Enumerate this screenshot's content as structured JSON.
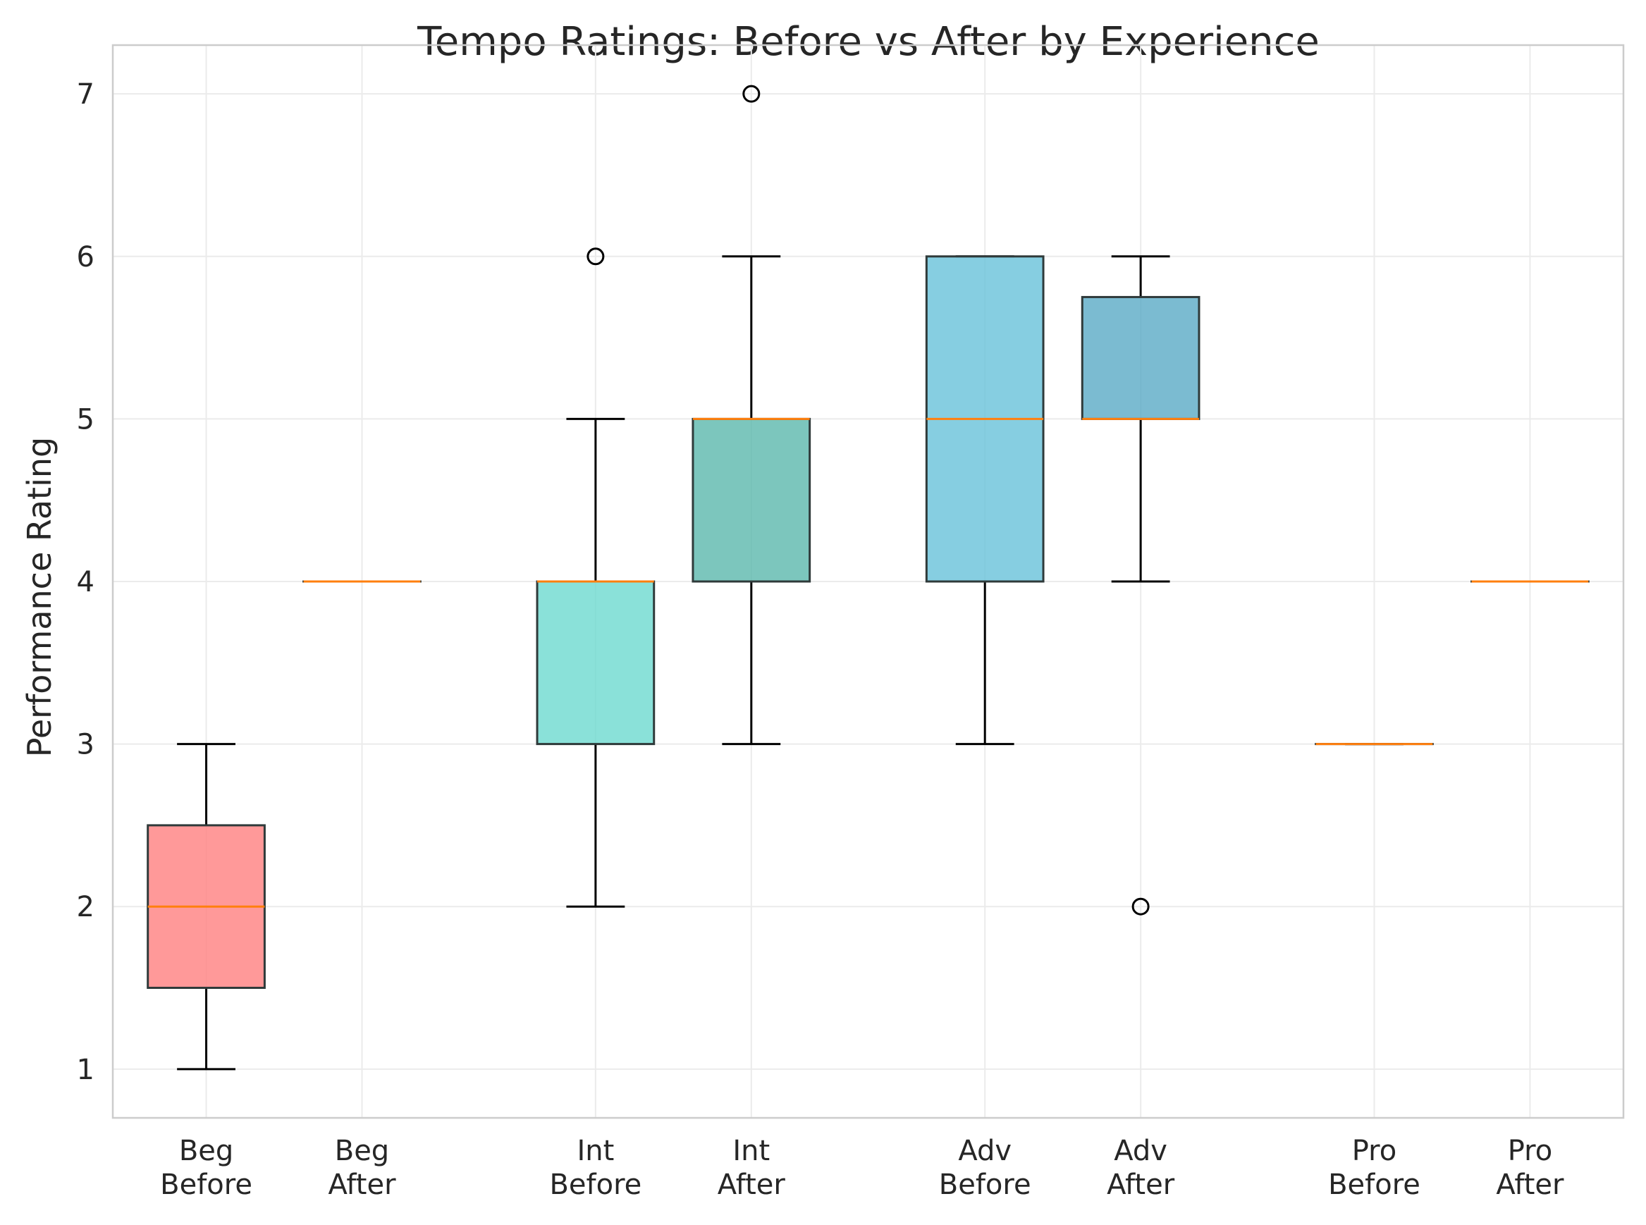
{
  "chart_data": {
    "type": "boxplot",
    "title": "Tempo Ratings: Before vs After by Experience",
    "xlabel": "",
    "ylabel": "Performance Rating",
    "ylim": [
      0.7,
      7.3
    ],
    "yticks": [
      1,
      2,
      3,
      4,
      5,
      6,
      7
    ],
    "grid": true,
    "legend": "none",
    "median_color": "#ff7f0e",
    "boxes": [
      {
        "label": [
          "Beg",
          "Before"
        ],
        "group": 0,
        "whislo": 1,
        "q1": 1.5,
        "med": 2,
        "q3": 2.5,
        "whishi": 3,
        "fliers": [],
        "color": "#ff7f7f"
      },
      {
        "label": [
          "Beg",
          "After"
        ],
        "group": 0,
        "whislo": 4,
        "q1": 4,
        "med": 4,
        "q3": 4,
        "whishi": 4,
        "fliers": [],
        "color": "#ff7f7f"
      },
      {
        "label": [
          "Int",
          "Before"
        ],
        "group": 1,
        "whislo": 2,
        "q1": 3,
        "med": 4,
        "q3": 4,
        "whishi": 5,
        "fliers": [
          6
        ],
        "color": "#6dd9cf"
      },
      {
        "label": [
          "Int",
          "After"
        ],
        "group": 1,
        "whislo": 3,
        "q1": 4,
        "med": 5,
        "q3": 5,
        "whishi": 6,
        "fliers": [
          7
        ],
        "color": "#5bb8ad"
      },
      {
        "label": [
          "Adv",
          "Before"
        ],
        "group": 2,
        "whislo": 3,
        "q1": 4,
        "med": 5,
        "q3": 6,
        "whishi": 6,
        "fliers": [],
        "color": "#68c2da"
      },
      {
        "label": [
          "Adv",
          "After"
        ],
        "group": 2,
        "whislo": 4,
        "q1": 5,
        "med": 5,
        "q3": 5.75,
        "whishi": 6,
        "fliers": [
          2
        ],
        "color": "#5aaac6"
      },
      {
        "label": [
          "Pro",
          "Before"
        ],
        "group": 3,
        "whislo": 3,
        "q1": 3,
        "med": 3,
        "q3": 3,
        "whishi": 3,
        "fliers": [],
        "color": "#5aaac6"
      },
      {
        "label": [
          "Pro",
          "After"
        ],
        "group": 3,
        "whislo": 4,
        "q1": 4,
        "med": 4,
        "q3": 4,
        "whishi": 4,
        "fliers": [],
        "color": "#5aaac6"
      }
    ]
  }
}
